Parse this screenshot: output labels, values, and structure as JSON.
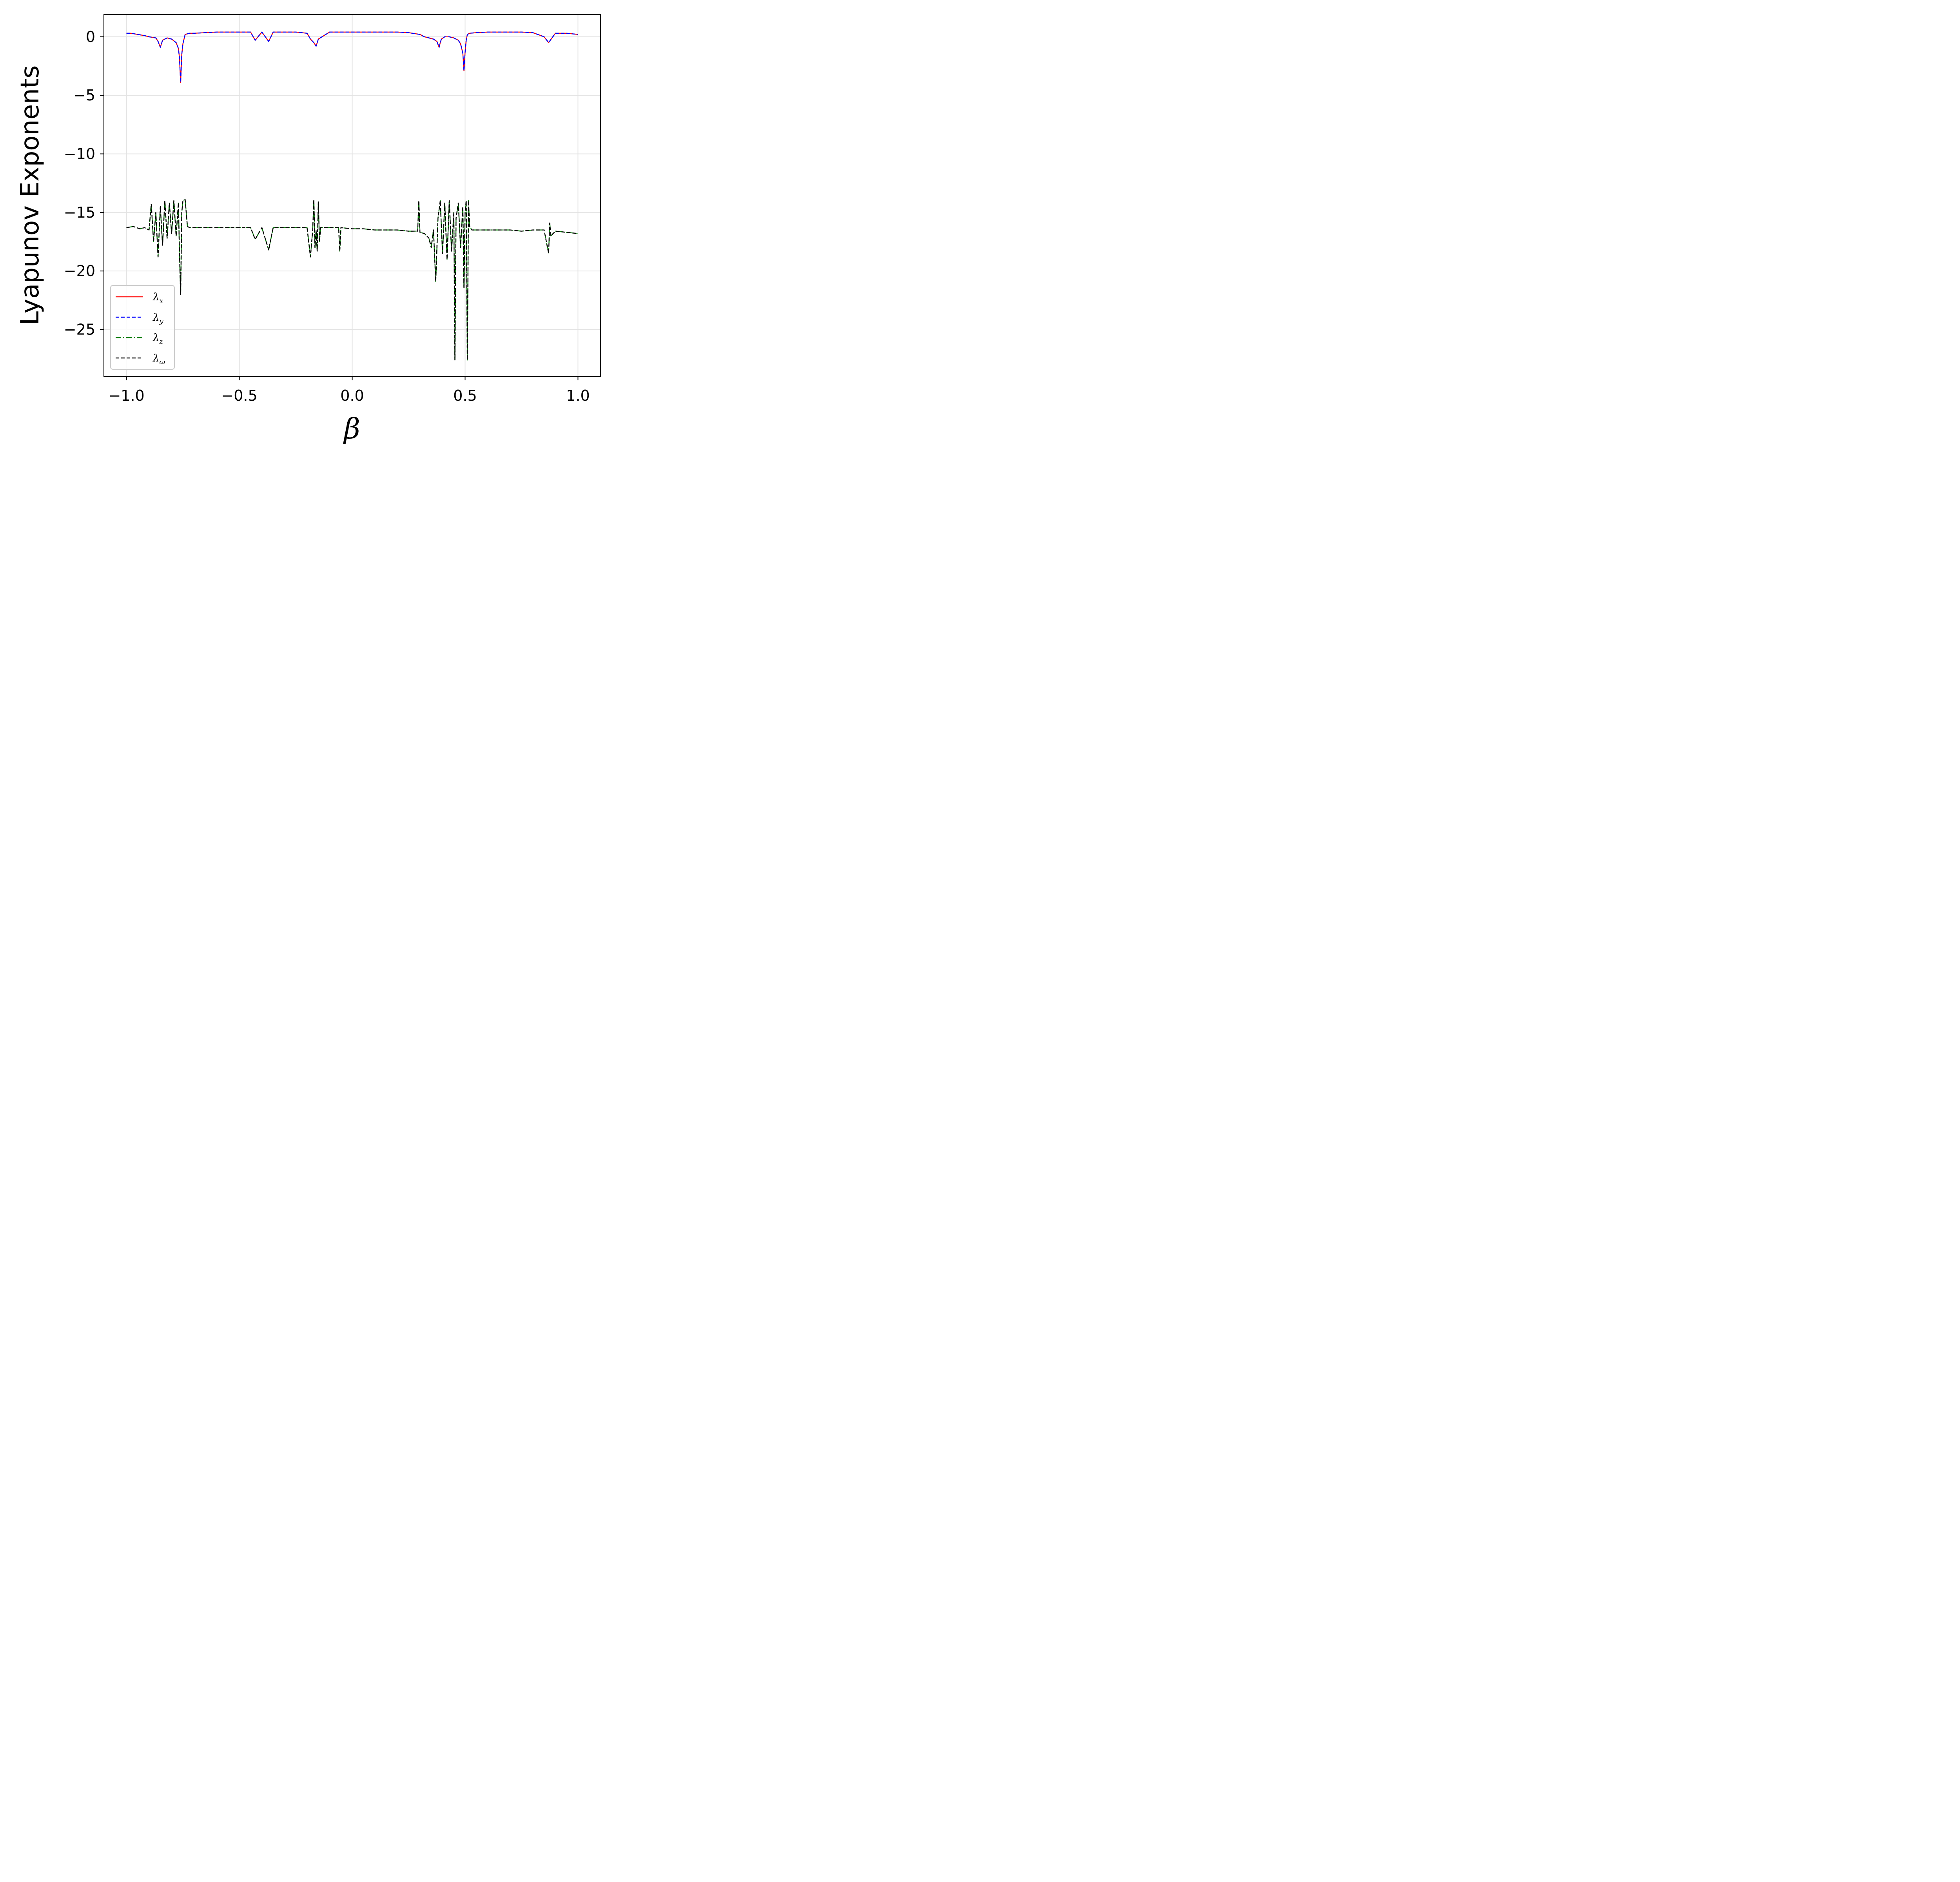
{
  "chart_data": {
    "type": "line",
    "title": "",
    "xlabel": "β",
    "ylabel": "Lyapunov Exponents",
    "xlim": [
      -1.1,
      1.1
    ],
    "ylim": [
      -29.0,
      1.9
    ],
    "grid": true,
    "legend_position": "lower-left",
    "x_ticks": [
      -1.0,
      -0.5,
      0.0,
      0.5,
      1.0
    ],
    "x_tick_labels": [
      "−1.0",
      "−0.5",
      "0.0",
      "0.5",
      "1.0"
    ],
    "y_ticks": [
      0,
      -5,
      -10,
      -15,
      -20,
      -25
    ],
    "y_tick_labels": [
      "0",
      "−5",
      "−10",
      "−15",
      "−20",
      "−25"
    ],
    "series": [
      {
        "name": "λx",
        "symbol": "λ",
        "subscript": "x",
        "color": "#ff0000",
        "style": "solid",
        "x": [
          -1.0,
          -0.98,
          -0.95,
          -0.92,
          -0.9,
          -0.87,
          -0.86,
          -0.85,
          -0.84,
          -0.82,
          -0.8,
          -0.78,
          -0.77,
          -0.765,
          -0.76,
          -0.755,
          -0.75,
          -0.74,
          -0.72,
          -0.7,
          -0.65,
          -0.6,
          -0.55,
          -0.5,
          -0.45,
          -0.43,
          -0.4,
          -0.37,
          -0.35,
          -0.3,
          -0.25,
          -0.2,
          -0.185,
          -0.17,
          -0.16,
          -0.15,
          -0.1,
          -0.05,
          0.0,
          0.05,
          0.1,
          0.15,
          0.2,
          0.25,
          0.3,
          0.32,
          0.34,
          0.36,
          0.375,
          0.385,
          0.39,
          0.395,
          0.41,
          0.43,
          0.45,
          0.47,
          0.48,
          0.49,
          0.495,
          0.5,
          0.505,
          0.51,
          0.52,
          0.55,
          0.6,
          0.65,
          0.7,
          0.75,
          0.8,
          0.85,
          0.87,
          0.9,
          0.95,
          1.0
        ],
        "values": [
          0.3,
          0.3,
          0.2,
          0.1,
          0.0,
          -0.1,
          -0.4,
          -0.9,
          -0.3,
          -0.1,
          -0.2,
          -0.5,
          -1.0,
          -1.8,
          -3.9,
          -1.5,
          -0.6,
          0.2,
          0.3,
          0.3,
          0.35,
          0.4,
          0.4,
          0.4,
          0.4,
          -0.3,
          0.4,
          -0.4,
          0.4,
          0.4,
          0.4,
          0.3,
          -0.2,
          -0.5,
          -0.8,
          -0.2,
          0.4,
          0.4,
          0.4,
          0.4,
          0.4,
          0.4,
          0.4,
          0.35,
          0.2,
          0.0,
          -0.1,
          -0.2,
          -0.4,
          -0.9,
          -0.5,
          -0.2,
          0.0,
          0.0,
          -0.1,
          -0.3,
          -0.6,
          -1.4,
          -2.9,
          -1.3,
          -0.3,
          0.2,
          0.3,
          0.35,
          0.4,
          0.4,
          0.4,
          0.4,
          0.35,
          0.0,
          -0.5,
          0.3,
          0.3,
          0.2
        ]
      },
      {
        "name": "λy",
        "symbol": "λ",
        "subscript": "y",
        "color": "#0000ff",
        "style": "dashed",
        "x": [
          -1.0,
          -0.98,
          -0.95,
          -0.92,
          -0.9,
          -0.87,
          -0.86,
          -0.85,
          -0.84,
          -0.82,
          -0.8,
          -0.78,
          -0.77,
          -0.765,
          -0.76,
          -0.755,
          -0.75,
          -0.74,
          -0.72,
          -0.7,
          -0.65,
          -0.6,
          -0.55,
          -0.5,
          -0.45,
          -0.43,
          -0.4,
          -0.37,
          -0.35,
          -0.3,
          -0.25,
          -0.2,
          -0.185,
          -0.17,
          -0.16,
          -0.15,
          -0.1,
          -0.05,
          0.0,
          0.05,
          0.1,
          0.15,
          0.2,
          0.25,
          0.3,
          0.32,
          0.34,
          0.36,
          0.375,
          0.385,
          0.39,
          0.395,
          0.41,
          0.43,
          0.45,
          0.47,
          0.48,
          0.49,
          0.495,
          0.5,
          0.505,
          0.51,
          0.52,
          0.55,
          0.6,
          0.65,
          0.7,
          0.75,
          0.8,
          0.85,
          0.87,
          0.9,
          0.95,
          1.0
        ],
        "values": [
          0.3,
          0.3,
          0.2,
          0.1,
          0.0,
          -0.1,
          -0.4,
          -0.9,
          -0.3,
          -0.1,
          -0.2,
          -0.5,
          -1.0,
          -1.8,
          -3.9,
          -1.5,
          -0.6,
          0.2,
          0.3,
          0.3,
          0.35,
          0.4,
          0.4,
          0.4,
          0.4,
          -0.3,
          0.4,
          -0.4,
          0.4,
          0.4,
          0.4,
          0.3,
          -0.2,
          -0.5,
          -0.8,
          -0.2,
          0.4,
          0.4,
          0.4,
          0.4,
          0.4,
          0.4,
          0.4,
          0.35,
          0.2,
          0.0,
          -0.1,
          -0.2,
          -0.4,
          -0.9,
          -0.5,
          -0.2,
          0.0,
          0.0,
          -0.1,
          -0.3,
          -0.6,
          -1.4,
          -2.9,
          -1.3,
          -0.3,
          0.2,
          0.3,
          0.35,
          0.4,
          0.4,
          0.4,
          0.4,
          0.35,
          0.0,
          -0.5,
          0.3,
          0.3,
          0.2
        ]
      },
      {
        "name": "λz",
        "symbol": "λ",
        "subscript": "z",
        "color": "#008000",
        "style": "dashdot",
        "x": [
          -1.0,
          -0.97,
          -0.94,
          -0.92,
          -0.9,
          -0.89,
          -0.88,
          -0.87,
          -0.86,
          -0.85,
          -0.84,
          -0.83,
          -0.82,
          -0.81,
          -0.8,
          -0.79,
          -0.78,
          -0.77,
          -0.765,
          -0.76,
          -0.755,
          -0.75,
          -0.74,
          -0.73,
          -0.72,
          -0.7,
          -0.65,
          -0.6,
          -0.55,
          -0.5,
          -0.45,
          -0.43,
          -0.4,
          -0.37,
          -0.35,
          -0.3,
          -0.25,
          -0.2,
          -0.185,
          -0.175,
          -0.17,
          -0.165,
          -0.16,
          -0.155,
          -0.15,
          -0.145,
          -0.14,
          -0.1,
          -0.06,
          -0.055,
          -0.05,
          0.0,
          0.05,
          0.1,
          0.15,
          0.2,
          0.25,
          0.29,
          0.295,
          0.3,
          0.32,
          0.34,
          0.35,
          0.36,
          0.37,
          0.38,
          0.39,
          0.4,
          0.41,
          0.42,
          0.43,
          0.44,
          0.45,
          0.455,
          0.46,
          0.47,
          0.48,
          0.49,
          0.495,
          0.5,
          0.505,
          0.51,
          0.515,
          0.52,
          0.53,
          0.55,
          0.6,
          0.65,
          0.7,
          0.75,
          0.8,
          0.85,
          0.87,
          0.875,
          0.88,
          0.9,
          0.95,
          1.0
        ],
        "values": [
          -16.3,
          -16.2,
          -16.4,
          -16.3,
          -16.5,
          -14.3,
          -17.5,
          -15.0,
          -18.8,
          -14.5,
          -17.8,
          -14.0,
          -17.2,
          -14.2,
          -16.8,
          -14.0,
          -17.0,
          -14.2,
          -18.5,
          -22.0,
          -15.0,
          -14.0,
          -13.9,
          -16.2,
          -16.3,
          -16.3,
          -16.3,
          -16.3,
          -16.3,
          -16.3,
          -16.3,
          -17.3,
          -16.3,
          -18.2,
          -16.3,
          -16.3,
          -16.3,
          -16.3,
          -18.8,
          -16.5,
          -13.9,
          -18.0,
          -16.5,
          -18.3,
          -14.1,
          -17.5,
          -16.3,
          -16.3,
          -16.3,
          -18.3,
          -16.3,
          -16.4,
          -16.4,
          -16.5,
          -16.5,
          -16.5,
          -16.6,
          -16.6,
          -14.0,
          -16.7,
          -16.8,
          -17.2,
          -18.0,
          -16.5,
          -20.9,
          -15.5,
          -14.0,
          -18.5,
          -14.2,
          -19.0,
          -14.0,
          -18.3,
          -15.0,
          -27.6,
          -15.5,
          -14.2,
          -18.0,
          -14.5,
          -21.5,
          -15.0,
          -14.0,
          -27.6,
          -14.0,
          -16.2,
          -16.5,
          -16.5,
          -16.5,
          -16.5,
          -16.5,
          -16.6,
          -16.5,
          -16.5,
          -18.5,
          -15.9,
          -17.0,
          -16.6,
          -16.7,
          -16.8
        ]
      },
      {
        "name": "λω",
        "symbol": "λ",
        "subscript": "ω",
        "color": "#000000",
        "style": "dashed",
        "x": [
          -1.0,
          -0.97,
          -0.94,
          -0.92,
          -0.9,
          -0.89,
          -0.88,
          -0.87,
          -0.86,
          -0.85,
          -0.84,
          -0.83,
          -0.82,
          -0.81,
          -0.8,
          -0.79,
          -0.78,
          -0.77,
          -0.765,
          -0.76,
          -0.755,
          -0.75,
          -0.74,
          -0.73,
          -0.72,
          -0.7,
          -0.65,
          -0.6,
          -0.55,
          -0.5,
          -0.45,
          -0.43,
          -0.4,
          -0.37,
          -0.35,
          -0.3,
          -0.25,
          -0.2,
          -0.185,
          -0.175,
          -0.17,
          -0.165,
          -0.16,
          -0.155,
          -0.15,
          -0.145,
          -0.14,
          -0.1,
          -0.06,
          -0.055,
          -0.05,
          0.0,
          0.05,
          0.1,
          0.15,
          0.2,
          0.25,
          0.29,
          0.295,
          0.3,
          0.32,
          0.34,
          0.35,
          0.36,
          0.37,
          0.38,
          0.39,
          0.4,
          0.41,
          0.42,
          0.43,
          0.44,
          0.45,
          0.455,
          0.46,
          0.47,
          0.48,
          0.49,
          0.495,
          0.5,
          0.505,
          0.51,
          0.515,
          0.52,
          0.53,
          0.55,
          0.6,
          0.65,
          0.7,
          0.75,
          0.8,
          0.85,
          0.87,
          0.875,
          0.88,
          0.9,
          0.95,
          1.0
        ],
        "values": [
          -16.3,
          -16.2,
          -16.4,
          -16.3,
          -16.5,
          -14.3,
          -17.5,
          -15.0,
          -18.8,
          -14.5,
          -17.8,
          -14.0,
          -17.2,
          -14.2,
          -16.8,
          -14.0,
          -17.0,
          -14.2,
          -18.5,
          -22.0,
          -15.0,
          -14.0,
          -13.9,
          -16.2,
          -16.3,
          -16.3,
          -16.3,
          -16.3,
          -16.3,
          -16.3,
          -16.3,
          -17.3,
          -16.3,
          -18.2,
          -16.3,
          -16.3,
          -16.3,
          -16.3,
          -18.8,
          -16.5,
          -13.9,
          -18.0,
          -16.5,
          -18.3,
          -14.1,
          -17.5,
          -16.3,
          -16.3,
          -16.3,
          -18.3,
          -16.3,
          -16.4,
          -16.4,
          -16.5,
          -16.5,
          -16.5,
          -16.6,
          -16.6,
          -14.0,
          -16.7,
          -16.8,
          -17.2,
          -18.0,
          -16.5,
          -20.9,
          -15.5,
          -14.0,
          -18.5,
          -14.2,
          -19.0,
          -14.0,
          -18.3,
          -15.0,
          -27.6,
          -15.5,
          -14.2,
          -18.0,
          -14.5,
          -21.5,
          -15.0,
          -14.0,
          -27.6,
          -14.0,
          -16.2,
          -16.5,
          -16.5,
          -16.5,
          -16.5,
          -16.5,
          -16.6,
          -16.5,
          -16.5,
          -18.5,
          -15.9,
          -17.0,
          -16.6,
          -16.7,
          -16.8
        ]
      }
    ]
  }
}
